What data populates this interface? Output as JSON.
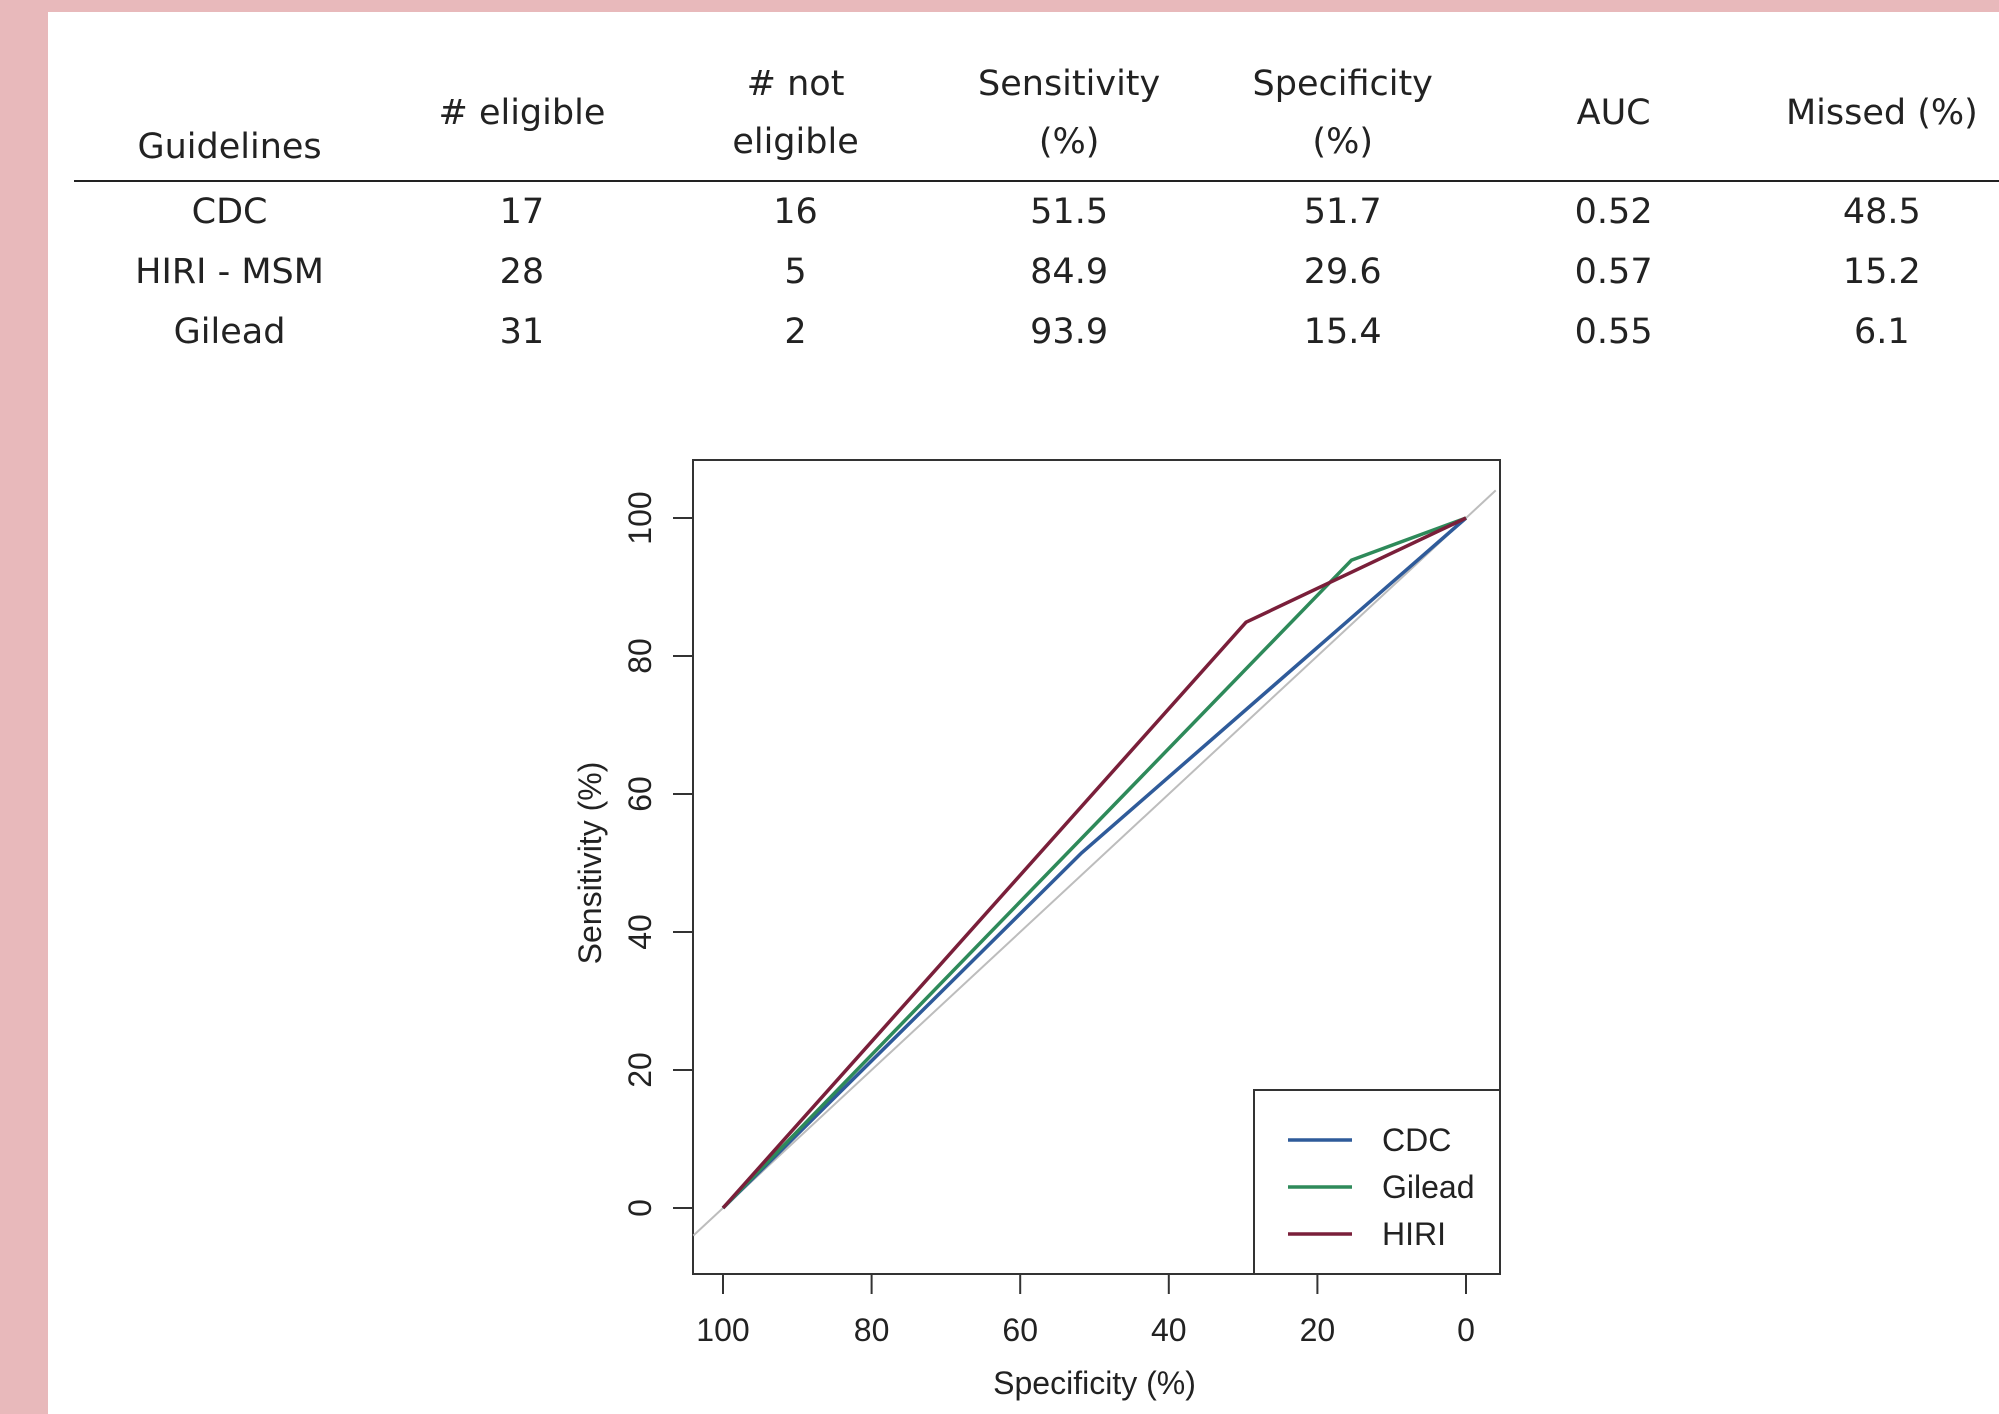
{
  "table": {
    "headers": [
      {
        "line1": "",
        "line2": "Guidelines"
      },
      {
        "line1": "# eligible",
        "line2": ""
      },
      {
        "line1": "# not",
        "line2": "eligible"
      },
      {
        "line1": "Sensitivity",
        "line2": "(%)"
      },
      {
        "line1": "Specificity",
        "line2": "(%)"
      },
      {
        "line1": "AUC",
        "line2": ""
      },
      {
        "line1": "Missed (%)",
        "line2": ""
      }
    ],
    "rows": [
      [
        "CDC",
        "17",
        "16",
        "51.5",
        "51.7",
        "0.52",
        "48.5"
      ],
      [
        "HIRI - MSM",
        "28",
        "5",
        "84.9",
        "29.6",
        "0.57",
        "15.2"
      ],
      [
        "Gilead",
        "31",
        "2",
        "93.9",
        "15.4",
        "0.55",
        "6.1"
      ]
    ]
  },
  "chart_data": {
    "type": "line",
    "xlabel": "Specificity (%)",
    "ylabel": "Sensitivity (%)",
    "xlim": [
      100,
      0
    ],
    "ylim": [
      0,
      100
    ],
    "x_reversed": true,
    "xticks": [
      "100",
      "80",
      "60",
      "40",
      "20",
      "0"
    ],
    "yticks": [
      "0",
      "20",
      "40",
      "60",
      "80",
      "100"
    ],
    "grid": false,
    "legend_position": "bottom-right",
    "diagonal_reference": true,
    "series": [
      {
        "name": "CDC",
        "color": "#2f5b9a",
        "x": [
          100,
          51.7,
          0
        ],
        "y": [
          0,
          51.5,
          100
        ]
      },
      {
        "name": "Gilead",
        "color": "#2e8a5a",
        "x": [
          100,
          15.4,
          0
        ],
        "y": [
          0,
          93.9,
          100
        ]
      },
      {
        "name": "HIRI",
        "color": "#7a1f3a",
        "x": [
          100,
          29.6,
          0
        ],
        "y": [
          0,
          84.9,
          100
        ]
      }
    ]
  }
}
